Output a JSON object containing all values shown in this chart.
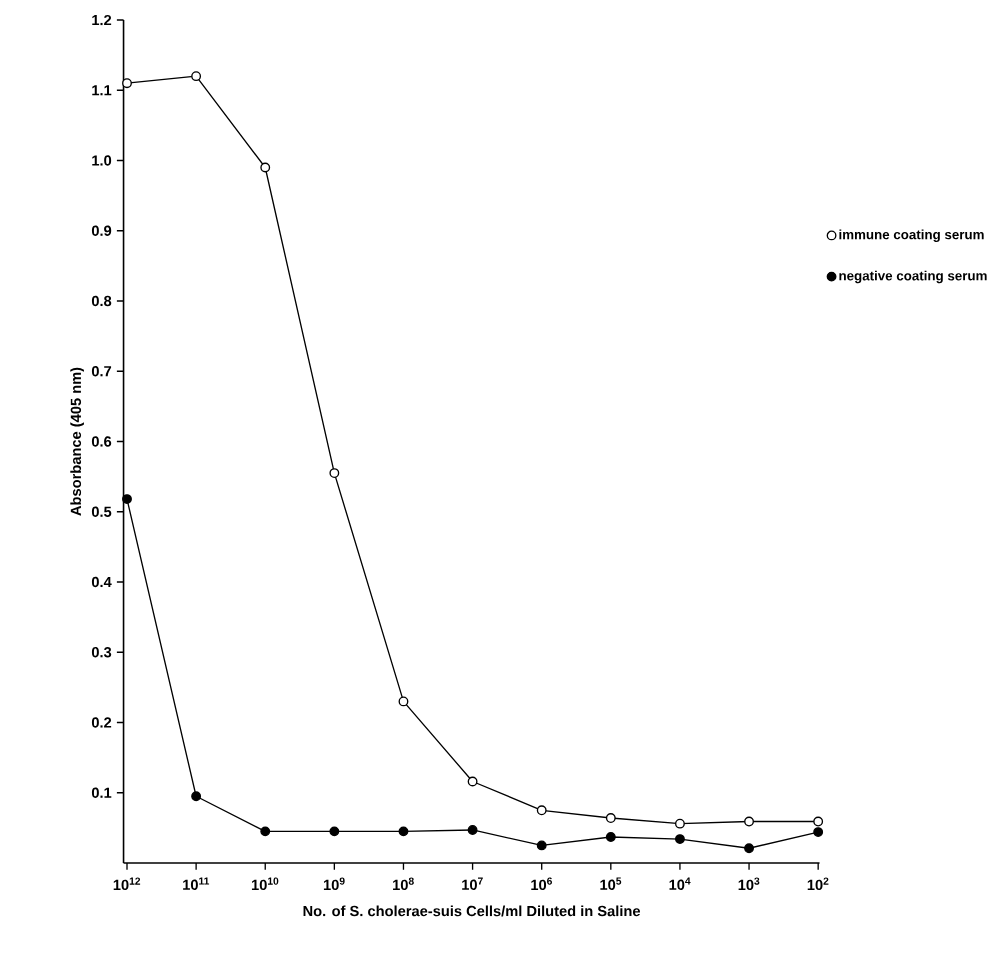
{
  "chart_data": {
    "type": "line",
    "xlabel": "No. of S. cholerae-suis Cells/ml Diluted in Saline",
    "ylabel": "Absorbance (405 nm)",
    "categories": [
      "10$^{12}$",
      "10$^{11}$",
      "10$^{10}$",
      "10$^{9}$",
      "10$^{8}$",
      "10$^{7}$",
      "10$^{6}$",
      "10$^{5}$",
      "10$^{4}$",
      "10$^{3}$",
      "10$^{2}$"
    ],
    "series": [
      {
        "name": "immune coating serum",
        "color": "#000000",
        "values": [
          1.11,
          1.12,
          0.99,
          0.555,
          0.23,
          0.116,
          0.075,
          0.064,
          0.056,
          0.059,
          0.059
        ]
      },
      {
        "name": "negative coating serum",
        "color": "#000000",
        "values": [
          0.518,
          0.095,
          0.045,
          0.045,
          0.045,
          0.047,
          0.025,
          0.037,
          0.034,
          0.021,
          0.044
        ]
      }
    ],
    "ylim": [
      0,
      1.2
    ],
    "yticks": [
      0.1,
      0.2,
      0.3,
      0.4,
      0.5,
      0.6,
      0.7,
      0.8,
      0.9,
      {
        "value": 1.0,
        "label": "1.0"
      },
      1.1,
      1.2
    ],
    "marker": "circle",
    "legend": "right"
  }
}
